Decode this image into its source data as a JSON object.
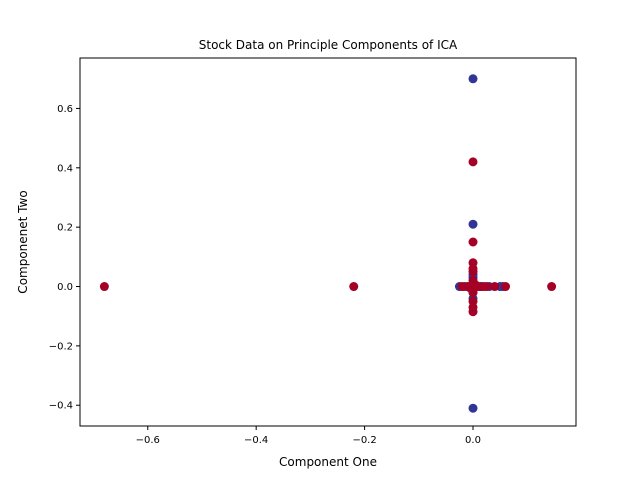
{
  "chart_data": {
    "type": "scatter",
    "title": "Stock Data on Principle Components of ICA",
    "xlabel": "Component One",
    "ylabel": "Componenet Two",
    "xlim": [
      -0.725,
      0.19
    ],
    "ylim": [
      -0.47,
      0.77
    ],
    "xticks": [
      -0.6,
      -0.4,
      -0.2,
      0.0
    ],
    "xtick_labels": [
      "−0.6",
      "−0.4",
      "−0.2",
      "0.0"
    ],
    "yticks": [
      -0.4,
      -0.2,
      0.0,
      0.2,
      0.4,
      0.6
    ],
    "ytick_labels": [
      "−0.4",
      "−0.2",
      "0.0",
      "0.2",
      "0.4",
      "0.6"
    ],
    "grid": false,
    "legend": false,
    "colors": {
      "class_a": "#313695",
      "class_b": "#a50026"
    },
    "series": [
      {
        "color_key": "class_a",
        "points": [
          [
            0.0,
            0.7
          ],
          [
            0.0,
            0.21
          ],
          [
            0.0,
            -0.41
          ],
          [
            0.0,
            0.04
          ],
          [
            0.0,
            0.03
          ],
          [
            0.0,
            -0.04
          ],
          [
            0.0,
            -0.02
          ],
          [
            0.0,
            0.01
          ],
          [
            0.0,
            -0.01
          ],
          [
            -0.025,
            0.0
          ],
          [
            -0.015,
            0.0
          ],
          [
            -0.005,
            0.0
          ],
          [
            0.005,
            0.0
          ],
          [
            0.015,
            0.0
          ],
          [
            0.02,
            0.0
          ],
          [
            0.03,
            0.0
          ],
          [
            0.05,
            0.0
          ],
          [
            0.055,
            0.0
          ]
        ]
      },
      {
        "color_key": "class_b",
        "points": [
          [
            -0.68,
            0.0
          ],
          [
            -0.22,
            0.0
          ],
          [
            0.145,
            0.0
          ],
          [
            0.06,
            0.0
          ],
          [
            0.0,
            0.42
          ],
          [
            0.0,
            0.15
          ],
          [
            0.0,
            0.08
          ],
          [
            0.0,
            0.06
          ],
          [
            0.0,
            0.05
          ],
          [
            0.0,
            0.02
          ],
          [
            0.0,
            0.0
          ],
          [
            0.0,
            -0.02
          ],
          [
            0.0,
            -0.05
          ],
          [
            0.0,
            -0.07
          ],
          [
            0.0,
            -0.085
          ],
          [
            -0.02,
            0.0
          ],
          [
            -0.01,
            0.0
          ],
          [
            0.01,
            0.0
          ],
          [
            0.015,
            0.0
          ],
          [
            0.025,
            0.0
          ],
          [
            0.04,
            0.0
          ],
          [
            0.005,
            0.005
          ],
          [
            -0.005,
            -0.005
          ]
        ]
      }
    ]
  }
}
